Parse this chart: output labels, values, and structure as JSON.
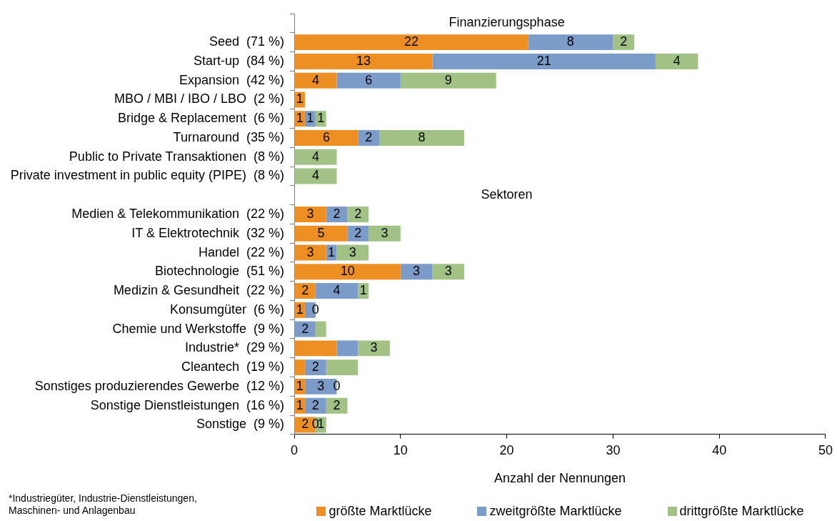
{
  "chart_data": {
    "type": "bar",
    "orientation": "horizontal",
    "stacked": true,
    "xlabel": "Anzahl der Nennungen",
    "categories": [
      null,
      "Seed  (71 %)",
      "Start-up  (84 %)",
      "Expansion  (42 %)",
      "MBO / MBI / IBO / LBO  (2 %)",
      "Bridge & Replacement  (6 %)",
      "Turnaround  (35 %)",
      "Public to Private Transaktionen  (8 %)",
      "Private investment in public equity (PIPE)  (8 %)",
      null,
      "Medien & Telekommunikation  (22 %)",
      "IT & Elektrotechnik  (32 %)",
      "Handel  (22 %)",
      "Biotechnologie  (51 %)",
      "Medizin & Gesundheit  (22 %)",
      "Konsumgüter  (6 %)",
      "Chemie und Werkstoffe  (9 %)",
      "Industrie*  (29 %)",
      "Cleantech  (19 %)",
      "Sonstiges produzierendes Gewerbe  (12 %)",
      "Sonstige Dienstleistungen  (16 %)",
      "Sonstige  (9 %)"
    ],
    "series": [
      {
        "name": "größte Marktlücke",
        "color": "#ee8f24",
        "values": [
          null,
          22,
          13,
          4,
          1,
          1,
          6,
          null,
          null,
          null,
          3,
          5,
          3,
          10,
          2,
          1,
          null,
          4,
          1,
          1,
          1,
          2
        ],
        "value_labels": [
          null,
          "22",
          "13",
          "4",
          "1",
          "1",
          "6",
          null,
          null,
          null,
          "3",
          "5",
          "3",
          "10",
          "2",
          "1",
          null,
          null,
          null,
          "1",
          "1",
          "2"
        ]
      },
      {
        "name": "zweitgrößte Marktlücke",
        "color": "#7b9bc8",
        "values": [
          null,
          8,
          21,
          6,
          null,
          1,
          2,
          null,
          null,
          null,
          2,
          2,
          1,
          3,
          4,
          1,
          2,
          2,
          2,
          3,
          2,
          0
        ],
        "value_labels": [
          null,
          "8",
          "21",
          "6",
          null,
          "1",
          "2",
          null,
          null,
          null,
          "2",
          "2",
          "1",
          "3",
          "4",
          null,
          "2",
          null,
          "2",
          "3",
          "2",
          "0"
        ]
      },
      {
        "name": "drittgrößte Marktlücke",
        "color": "#a1c284",
        "values": [
          null,
          2,
          4,
          9,
          null,
          1,
          8,
          4,
          4,
          null,
          2,
          3,
          3,
          3,
          1,
          0,
          1,
          3,
          3,
          0,
          2,
          1
        ],
        "value_labels": [
          null,
          "2",
          "4",
          "9",
          null,
          "1",
          "8",
          "4",
          "4",
          null,
          "2",
          "3",
          "3",
          "3",
          "1",
          "0",
          null,
          "3",
          null,
          "0",
          "2",
          "1"
        ]
      }
    ],
    "xlim": [
      0,
      50
    ],
    "xticks": [
      0,
      10,
      20,
      30,
      40,
      50
    ],
    "grid": false,
    "legend": "bottom",
    "annotations": [
      "Finanzierungsphase",
      "Sektoren",
      "*Industriegüter, Industrie-Dienstleistungen, Maschinen- und Anlagenbau"
    ]
  }
}
